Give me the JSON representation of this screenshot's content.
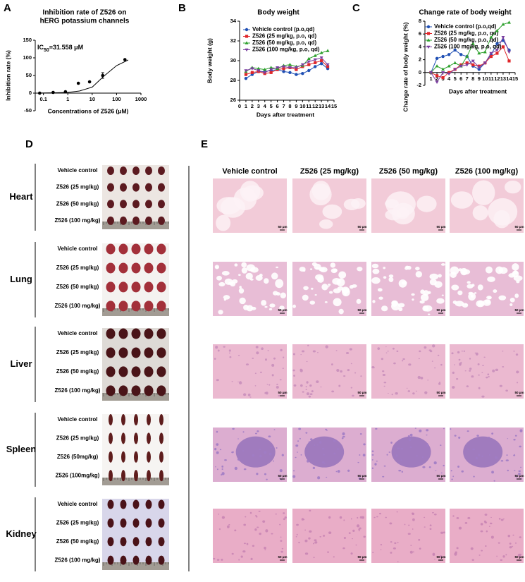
{
  "panel_labels": [
    "A",
    "B",
    "C",
    "D",
    "E"
  ],
  "chart_data": [
    {
      "type": "scatter",
      "title": [
        "Inhibition rate of Z526 on",
        "hERG potassium channels"
      ],
      "annotation": {
        "prefix": "IC",
        "subscript": "50",
        "suffix": "=31.558 μM"
      },
      "x_label": "Concentrations of Z526 (μM)",
      "y_label": "Inhibition rate (%)",
      "xlog": true,
      "xlim": [
        0.046,
        1000
      ],
      "xticks": [
        0.1,
        1,
        10,
        100,
        1000
      ],
      "ylim": [
        -50,
        150
      ],
      "yticks": [
        -50,
        0,
        50,
        100,
        150
      ],
      "xaxis_crossing": 0,
      "color": "#000000",
      "points": {
        "x": [
          0.07,
          0.25,
          0.8,
          2.7,
          7.8,
          27,
          220
        ],
        "values": [
          0,
          2,
          4,
          28,
          32,
          50,
          95
        ],
        "errors": [
          null,
          null,
          null,
          null,
          null,
          8,
          null
        ]
      },
      "curve": {
        "x": [
          0.07,
          0.1,
          0.3,
          1,
          3,
          10,
          30,
          100,
          300
        ],
        "values": [
          0.3,
          0.5,
          1,
          2,
          6,
          17,
          48,
          78,
          94
        ]
      }
    },
    {
      "type": "line",
      "title": "Body weight",
      "x_label": "Days after treatment",
      "y_label": "Body weight (g)",
      "xlim": [
        0,
        15
      ],
      "xticks": [
        0,
        1,
        2,
        3,
        4,
        5,
        6,
        7,
        8,
        9,
        10,
        11,
        12,
        13,
        14,
        15
      ],
      "ylim": [
        26,
        34
      ],
      "yticks": [
        26,
        28,
        30,
        32,
        34
      ],
      "x": [
        1,
        2,
        3,
        4,
        5,
        6,
        7,
        8,
        9,
        10,
        11,
        12,
        13,
        14
      ],
      "series": [
        {
          "name": "Vehicle control (p.o,qd)",
          "color": "#1f4fb4",
          "marker": "circle",
          "values": [
            28.2,
            28.6,
            28.9,
            28.9,
            29.0,
            29.1,
            28.9,
            28.8,
            28.6,
            28.7,
            29.0,
            29.4,
            29.7,
            29.2
          ]
        },
        {
          "name": "Z526 (25 mg/kg, p.o, qd)",
          "color": "#e0262a",
          "marker": "square",
          "values": [
            28.6,
            28.8,
            28.9,
            28.7,
            28.8,
            29.1,
            29.2,
            29.3,
            29.1,
            29.4,
            29.6,
            29.8,
            30.0,
            29.4
          ]
        },
        {
          "name": "Z526 (50 mg/kg, p.o, qd)",
          "color": "#2ca02c",
          "marker": "triangle",
          "values": [
            28.9,
            29.3,
            29.2,
            29.1,
            29.3,
            29.2,
            29.5,
            29.6,
            29.4,
            29.5,
            30.2,
            30.5,
            30.8,
            31.0
          ]
        },
        {
          "name": "Z526 (100 mg/kg, p.o, qd)",
          "color": "#7b3fa0",
          "marker": "triangle-down",
          "values": [
            29.0,
            29.2,
            29.0,
            28.8,
            29.1,
            29.3,
            29.4,
            29.3,
            29.3,
            29.6,
            29.9,
            30.1,
            30.3,
            29.6
          ]
        }
      ]
    },
    {
      "type": "line",
      "title": "Change rate of body weight",
      "x_label": "Days after treatment",
      "y_label": "Change rate of body weight (%)",
      "xlim": [
        0,
        15
      ],
      "xticks": [
        1,
        2,
        3,
        4,
        5,
        6,
        7,
        8,
        9,
        10,
        11,
        12,
        13,
        14,
        15
      ],
      "ylim": [
        -2,
        8
      ],
      "yticks": [
        -2,
        0,
        2,
        4,
        6,
        8
      ],
      "xaxis_crossing": 0,
      "x": [
        1,
        2,
        3,
        4,
        5,
        6,
        7,
        8,
        9,
        10,
        11,
        12,
        13,
        14
      ],
      "series": [
        {
          "name": "Vehicle control (p.o,qd)",
          "color": "#1f4fb4",
          "marker": "circle",
          "values": [
            0,
            2.2,
            2.5,
            2.8,
            3.5,
            2.8,
            2.5,
            1.0,
            0.5,
            1.5,
            2.8,
            4.5,
            5.0,
            3.5
          ]
        },
        {
          "name": "Z526 (25 mg/kg, p.o, qd)",
          "color": "#e0262a",
          "marker": "square",
          "values": [
            0,
            -0.5,
            -0.8,
            0,
            0.5,
            1.2,
            1.5,
            1.2,
            1.0,
            1.5,
            2.5,
            3.0,
            4.0,
            1.8
          ]
        },
        {
          "name": "Z526 (50 mg/kg, p.o, qd)",
          "color": "#2ca02c",
          "marker": "triangle",
          "values": [
            0,
            1.0,
            0.5,
            1.0,
            1.5,
            1.0,
            2.5,
            4.5,
            3.0,
            3.2,
            5.5,
            6.5,
            7.5,
            7.8
          ]
        },
        {
          "name": "Z526 (100 mg/kg, p.o, qd)",
          "color": "#7b3fa0",
          "marker": "triangle-down",
          "values": [
            0,
            -1.5,
            0.0,
            -0.2,
            0.5,
            1.0,
            1.2,
            1.8,
            0.8,
            1.5,
            3.0,
            3.5,
            5.5,
            3.2
          ]
        }
      ]
    }
  ],
  "panel_d": {
    "rows": [
      {
        "organ": "Heart",
        "groups": [
          "Vehicle control",
          "Z526 (25 mg/kg)",
          "Z526 (50 mg/kg)",
          "Z526 (100 mg/kg)"
        ]
      },
      {
        "organ": "Lung",
        "groups": [
          "Vehicle control",
          "Z526 (25 mg/kg)",
          "Z526 (50 mg/kg)",
          "Z526 (100 mg/kg)"
        ]
      },
      {
        "organ": "Liver",
        "groups": [
          "Vehicle control",
          "Z526 (25 mg/kg)",
          "Z526 (50 mg/kg)",
          "Z526 (100 mg/kg)"
        ]
      },
      {
        "organ": "Spleen",
        "groups": [
          "Vehicle control",
          "Z526 (25 mg/kg)",
          "Z526 (50mg/kg)",
          "Z526 (100mg/kg)"
        ]
      },
      {
        "organ": "Kidney",
        "groups": [
          "Vehicle control",
          "Z526 (25 mg/kg)",
          "Z526 (50 mg/kg)",
          "Z526 (100 mg/kg)"
        ]
      }
    ]
  },
  "panel_e": {
    "columns": [
      "Vehicle control",
      "Z526 (25 mg/kg)",
      "Z526 (50 mg/kg)",
      "Z526 (100 mg/kg)"
    ],
    "scale_bar": "50 μm"
  }
}
